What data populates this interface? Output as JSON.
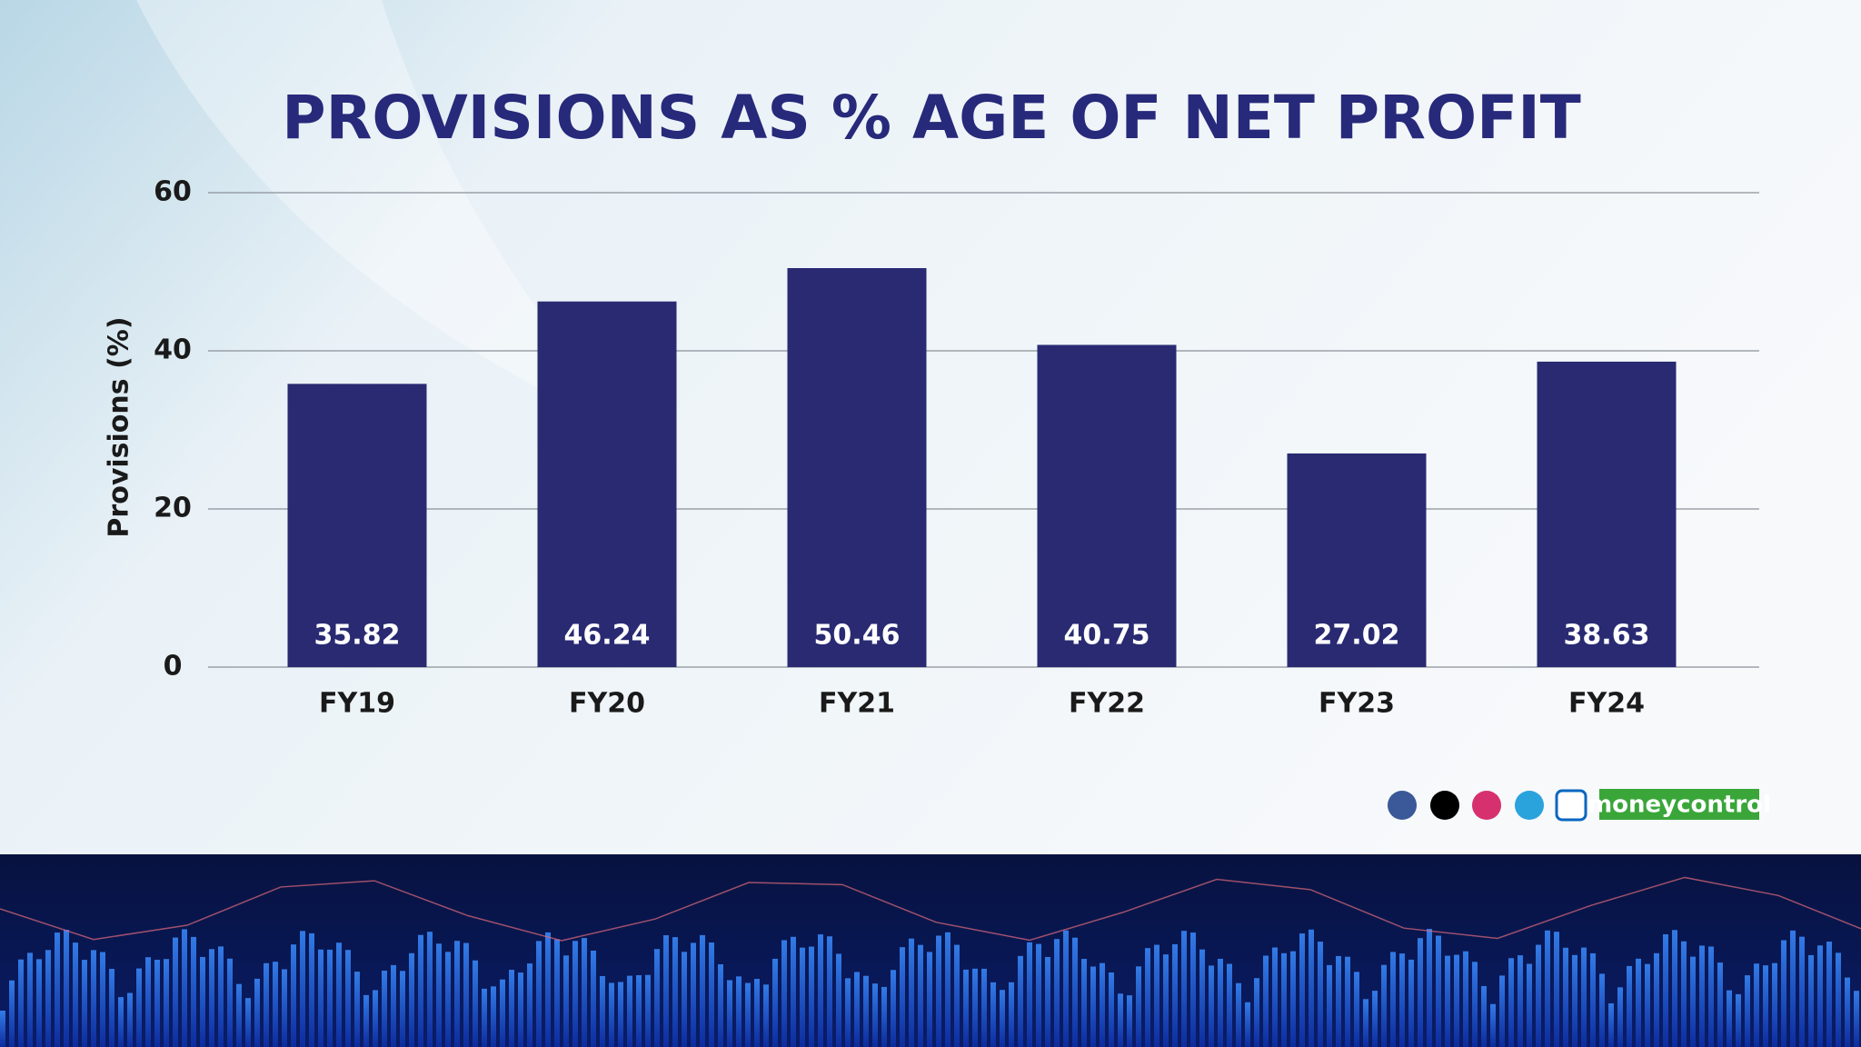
{
  "chart_data": {
    "type": "bar",
    "title": "PROVISIONS AS % AGE OF NET PROFIT",
    "y_label": "Provisions (%)",
    "categories": [
      "FY19",
      "FY20",
      "FY21",
      "FY22",
      "FY23",
      "FY24"
    ],
    "values": [
      35.82,
      46.24,
      50.46,
      40.75,
      27.02,
      38.63
    ],
    "color": "#292a72",
    "ylim": [
      0,
      60
    ],
    "yticks": [
      0,
      20,
      40,
      60
    ],
    "grid": true
  },
  "footer": {
    "brand": "moneycontrol"
  }
}
